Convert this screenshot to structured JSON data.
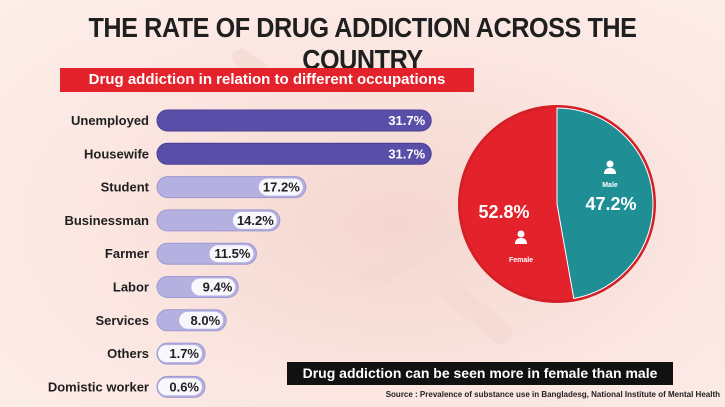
{
  "header": {
    "title": "THE RATE OF DRUG ADDICTION ACROSS THE COUNTRY",
    "subtitle": "Drug addiction in relation to different occupations"
  },
  "chart_data": [
    {
      "type": "bar",
      "orientation": "horizontal",
      "categories": [
        "Unemployed",
        "Housewife",
        "Student",
        "Businessman",
        "Farmer",
        "Labor",
        "Services",
        "Others",
        "Domistic worker"
      ],
      "values": [
        31.7,
        31.7,
        17.2,
        14.2,
        11.5,
        9.4,
        8.0,
        1.7,
        0.6
      ],
      "value_labels": [
        "31.7%",
        "31.7%",
        "17.2%",
        "14.2%",
        "11.5%",
        "9.4%",
        "8.0%",
        "1.7%",
        "0.6%"
      ],
      "highlight_colors": [
        "#5a4fa8",
        "#5a4fa8",
        "#b4b0e0",
        "#b4b0e0",
        "#b4b0e0",
        "#b4b0e0",
        "#b4b0e0",
        "#b4b0e0",
        "#b4b0e0"
      ],
      "unit": "%"
    },
    {
      "type": "pie",
      "slices": [
        {
          "name": "Male",
          "value": 47.2,
          "label": "47.2%",
          "color": "#1f8f95"
        },
        {
          "name": "Female",
          "value": 52.8,
          "label": "52.8%",
          "color": "#e4222b"
        }
      ]
    }
  ],
  "pie_caption": "Drug addiction can be seen more in female than male",
  "source": "Source : Prevalence of substance use in Bangladesg, National Institute of Mental Health",
  "colors": {
    "accent_red": "#e4222b",
    "bar_dark": "#5a4fa8",
    "bar_light": "#b4b0e0",
    "pie_teal": "#1f8f95",
    "background": "#fbe3dd"
  }
}
